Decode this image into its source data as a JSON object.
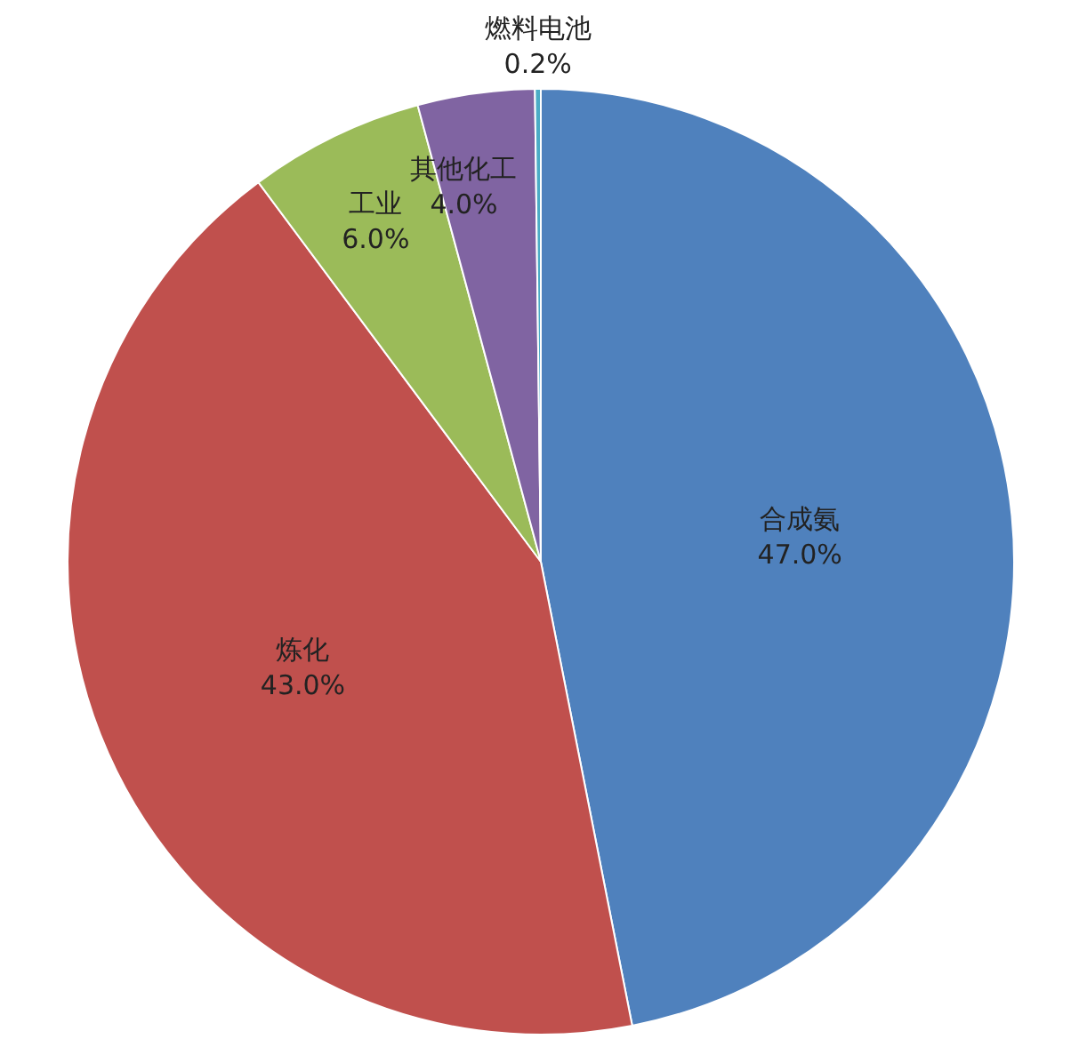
{
  "chart_data": {
    "type": "pie",
    "categories": [
      "合成氨",
      "炼化",
      "工业",
      "其他化工",
      "燃料电池"
    ],
    "values": [
      47.0,
      43.0,
      6.0,
      4.0,
      0.2
    ],
    "colors": [
      "#4f81bd",
      "#c0504d",
      "#9bbb59",
      "#8064a2",
      "#4bacc6"
    ],
    "value_labels": [
      "47.0%",
      "43.0%",
      "6.0%",
      "4.0%",
      "0.2%"
    ],
    "legend": false
  }
}
